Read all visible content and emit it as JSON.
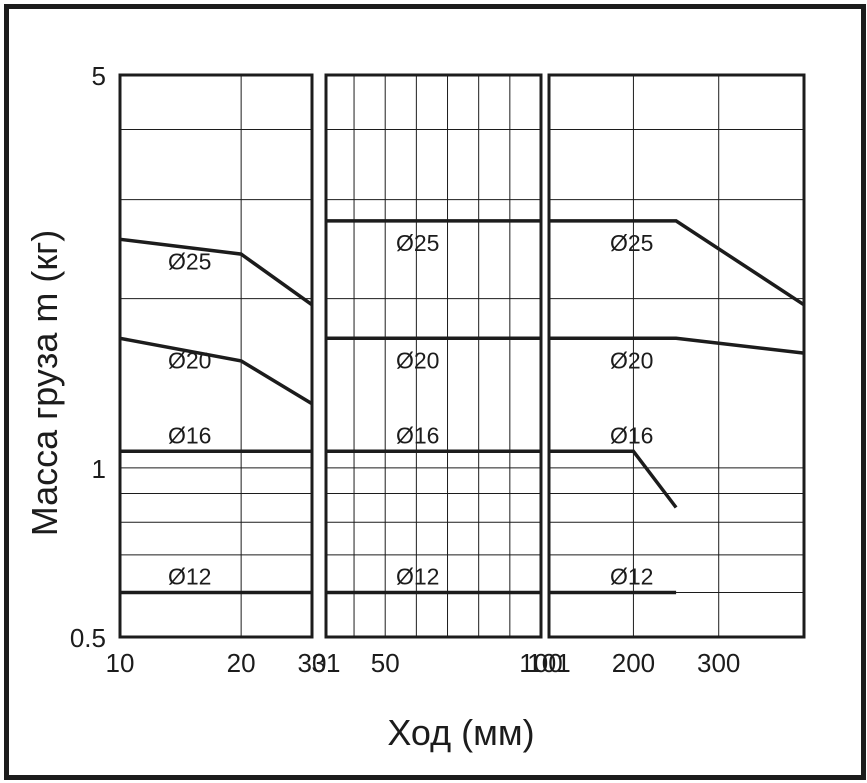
{
  "chart_data": {
    "type": "line",
    "title": "",
    "xlabel": "Ход (мм)",
    "ylabel": "Масса груза m (кг)",
    "yscale": "log",
    "ylim": [
      0.5,
      5
    ],
    "y_ticks": [
      "5",
      "1",
      "0.5"
    ],
    "grid": true,
    "panels": [
      {
        "xscale": "log",
        "xlim": [
          10,
          30
        ],
        "x_ticks": [
          "10",
          "20",
          "30"
        ],
        "series": [
          {
            "name": "Ø25",
            "x": [
              10,
              20,
              30
            ],
            "y": [
              2.55,
              2.4,
              1.95
            ]
          },
          {
            "name": "Ø20",
            "x": [
              10,
              20,
              30
            ],
            "y": [
              1.7,
              1.55,
              1.3
            ]
          },
          {
            "name": "Ø16",
            "x": [
              10,
              30
            ],
            "y": [
              1.07,
              1.07
            ]
          },
          {
            "name": "Ø12",
            "x": [
              10,
              30
            ],
            "y": [
              0.6,
              0.6
            ]
          }
        ]
      },
      {
        "xscale": "linear",
        "xlim": [
          31,
          100
        ],
        "x_ticks": [
          "31",
          "50",
          "100"
        ],
        "series": [
          {
            "name": "Ø25",
            "x": [
              31,
              100
            ],
            "y": [
              2.75,
              2.75
            ]
          },
          {
            "name": "Ø20",
            "x": [
              31,
              100
            ],
            "y": [
              1.7,
              1.7
            ]
          },
          {
            "name": "Ø16",
            "x": [
              31,
              100
            ],
            "y": [
              1.07,
              1.07
            ]
          },
          {
            "name": "Ø12",
            "x": [
              31,
              100
            ],
            "y": [
              0.6,
              0.6
            ]
          }
        ]
      },
      {
        "xscale": "linear",
        "xlim": [
          101,
          400
        ],
        "x_ticks": [
          "101",
          "200",
          "300"
        ],
        "series": [
          {
            "name": "Ø25",
            "x": [
              101,
              250,
              400
            ],
            "y": [
              2.75,
              2.75,
              1.95
            ]
          },
          {
            "name": "Ø20",
            "x": [
              101,
              250,
              400
            ],
            "y": [
              1.7,
              1.7,
              1.6
            ]
          },
          {
            "name": "Ø16",
            "x": [
              101,
              200,
              250
            ],
            "y": [
              1.07,
              1.07,
              0.85
            ]
          },
          {
            "name": "Ø12",
            "x": [
              101,
              250
            ],
            "y": [
              0.6,
              0.6
            ]
          }
        ]
      }
    ]
  }
}
